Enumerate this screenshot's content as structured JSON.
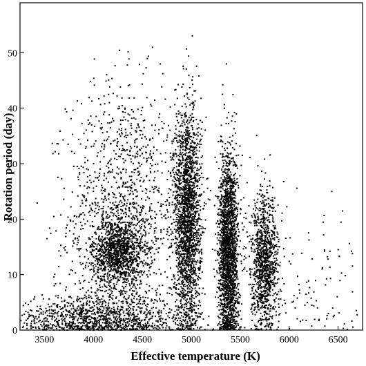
{
  "chart_data": {
    "type": "scatter",
    "title": "",
    "xlabel": "Effective temperature (K)",
    "ylabel": "Rotation period (day)",
    "xlim": [
      3250,
      6750
    ],
    "ylim": [
      0,
      59
    ],
    "x_ticks": [
      3500,
      4000,
      4500,
      5000,
      5500,
      6000,
      6500
    ],
    "y_ticks": [
      0,
      10,
      20,
      30,
      40,
      50
    ],
    "grid": false,
    "legend": "none",
    "marker_color": "#000000",
    "clusters": [
      {
        "x_center": 4300,
        "x_spread": 280,
        "y_center": 20,
        "y_spread": 12,
        "density": "sparse-wide"
      },
      {
        "x_center": 4250,
        "x_spread": 130,
        "y_center": 14,
        "y_spread": 3,
        "density": "dense"
      },
      {
        "x_center": 4000,
        "x_spread": 450,
        "y_center": 2,
        "y_spread": 2,
        "density": "dense"
      },
      {
        "x_center": 4960,
        "x_spread": 70,
        "y_center": 20,
        "y_spread": 10,
        "density": "very-dense"
      },
      {
        "x_center": 5380,
        "x_spread": 50,
        "y_center": 14,
        "y_spread": 9,
        "density": "very-dense"
      },
      {
        "x_center": 5750,
        "x_spread": 70,
        "y_center": 12,
        "y_spread": 6,
        "density": "dense"
      },
      {
        "x_center": 6200,
        "x_spread": 300,
        "y_center": 8,
        "y_spread": 8,
        "density": "sparse"
      }
    ]
  }
}
